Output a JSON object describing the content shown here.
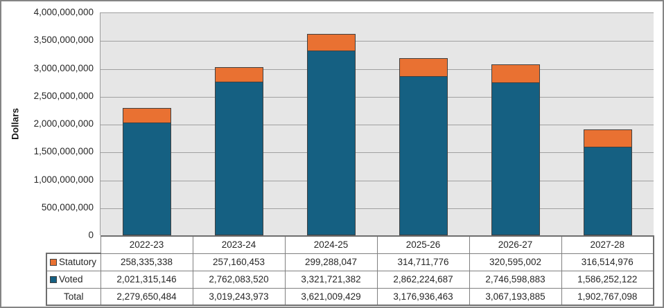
{
  "chart_data": {
    "type": "bar",
    "stacked": true,
    "title": "",
    "ylabel": "Dollars",
    "xlabel": "",
    "ylim": [
      0,
      4000000000
    ],
    "ytick_step": 500000000,
    "grid": true,
    "legend_position": "table-left",
    "categories": [
      "2022-23",
      "2023-24",
      "2024-25",
      "2025-26",
      "2026-27",
      "2027-28"
    ],
    "series": [
      {
        "name": "Statutory",
        "color": "#E97132",
        "values": [
          258335338,
          257160453,
          299288047,
          314711776,
          320595002,
          316514976
        ]
      },
      {
        "name": "Voted",
        "color": "#156082",
        "values": [
          2021315146,
          2762083520,
          3321721382,
          2862224687,
          2746598883,
          1586252122
        ]
      }
    ],
    "totals": [
      2279650484,
      3019243973,
      3621009429,
      3176936463,
      3067193885,
      1902767098
    ],
    "total_label": "Total"
  },
  "colors": {
    "statutory": "#E97132",
    "voted": "#156082",
    "plot_background": "#E6E6E6",
    "gridline": "#A0A0A0",
    "bar_border": "#404040",
    "table_border": "#7F7F7F",
    "outer_border": "#848484",
    "text": "#262626"
  }
}
